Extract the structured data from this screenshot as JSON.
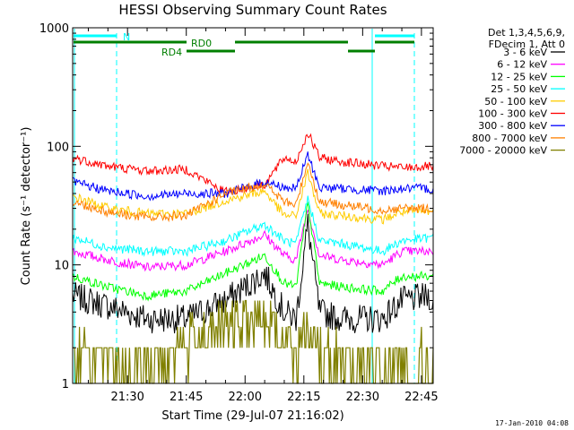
{
  "chart_data": {
    "type": "line",
    "title": "HESSI Observing Summary Count Rates",
    "xlabel": "Start Time (29-Jul-07 21:16:02)",
    "ylabel": "Count Rate (s⁻¹ detector⁻¹)",
    "yscale": "log",
    "ylim": [
      1,
      1000
    ],
    "xlim_minutes_after_2115": [
      1,
      93
    ],
    "xticks": [
      "21:30",
      "21:45",
      "22:00",
      "22:15",
      "22:30",
      "22:45"
    ],
    "yticks": [
      "1",
      "10",
      "100",
      "1000"
    ],
    "legend_header": [
      "Det 1,3,4,5,6,9,",
      "FDecim 1, Att 0"
    ],
    "legend_position": "top-right",
    "date_stamp": "17-Jan-2010 04:08",
    "annotations": [
      {
        "text": "N",
        "color": "#00ffff"
      },
      {
        "text": "RD0",
        "color": "#007f00"
      },
      {
        "text": "RD4",
        "color": "#007f00"
      }
    ],
    "series": [
      {
        "name": "3 - 6 keV",
        "color": "#000000",
        "x": [
          1,
          10,
          20,
          30,
          40,
          50,
          55,
          58,
          61,
          64,
          70,
          80,
          85,
          93
        ],
        "values": [
          5.5,
          4.5,
          3.5,
          3.5,
          5,
          8.5,
          4,
          3.5,
          22,
          4,
          3.5,
          3.5,
          5,
          5.5
        ]
      },
      {
        "name": "6 - 12 keV",
        "color": "#ff00ff",
        "x": [
          1,
          10,
          20,
          30,
          40,
          50,
          55,
          58,
          61,
          64,
          70,
          80,
          85,
          93
        ],
        "values": [
          13,
          11,
          9.5,
          10,
          13,
          18,
          12,
          11,
          30,
          12,
          11,
          10,
          13,
          13
        ]
      },
      {
        "name": "12 - 25 keV",
        "color": "#00ff00",
        "x": [
          1,
          10,
          20,
          30,
          40,
          50,
          55,
          58,
          61,
          64,
          70,
          80,
          85,
          93
        ],
        "values": [
          8,
          6.5,
          5.5,
          6,
          8.5,
          12,
          7,
          6.5,
          33,
          7,
          6.5,
          6,
          8,
          8
        ]
      },
      {
        "name": "25 - 50 keV",
        "color": "#00ffff",
        "x": [
          1,
          10,
          20,
          30,
          40,
          50,
          55,
          58,
          61,
          64,
          70,
          80,
          85,
          93
        ],
        "values": [
          17,
          14,
          13,
          13,
          16,
          22,
          16,
          15,
          36,
          16,
          15,
          13,
          16,
          17
        ]
      },
      {
        "name": "50 - 100 keV",
        "color": "#ffcc00",
        "x": [
          1,
          10,
          20,
          30,
          40,
          50,
          55,
          58,
          61,
          64,
          70,
          80,
          85,
          93
        ],
        "values": [
          38,
          30,
          27,
          27,
          35,
          42,
          26,
          26,
          60,
          27,
          26,
          24,
          28,
          28
        ]
      },
      {
        "name": "100 - 300 keV",
        "color": "#ff0000",
        "x": [
          1,
          10,
          20,
          30,
          40,
          50,
          55,
          58,
          61,
          64,
          70,
          80,
          85,
          93
        ],
        "values": [
          80,
          68,
          62,
          64,
          41,
          48,
          80,
          74,
          130,
          80,
          74,
          68,
          66,
          68
        ]
      },
      {
        "name": "300 - 800 keV",
        "color": "#0000ff",
        "x": [
          1,
          10,
          20,
          30,
          40,
          50,
          55,
          58,
          61,
          64,
          70,
          80,
          85,
          93
        ],
        "values": [
          50,
          42,
          38,
          40,
          40,
          50,
          45,
          44,
          85,
          45,
          44,
          42,
          44,
          44
        ]
      },
      {
        "name": "800 - 7000 keV",
        "color": "#ff8000",
        "x": [
          1,
          10,
          20,
          30,
          40,
          50,
          55,
          58,
          61,
          64,
          70,
          80,
          85,
          93
        ],
        "values": [
          34,
          28,
          25,
          26,
          40,
          48,
          34,
          32,
          75,
          34,
          32,
          29,
          30,
          30
        ]
      },
      {
        "name": "7000 - 20000 keV",
        "color": "#808000",
        "x": [
          1,
          10,
          20,
          30,
          40,
          50,
          55,
          58,
          61,
          64,
          70,
          80,
          85,
          93
        ],
        "values": [
          1.8,
          1.5,
          1.3,
          2.2,
          3,
          3.5,
          2.2,
          2,
          3,
          2,
          1.6,
          1.5,
          1.5,
          1.6
        ]
      }
    ]
  }
}
